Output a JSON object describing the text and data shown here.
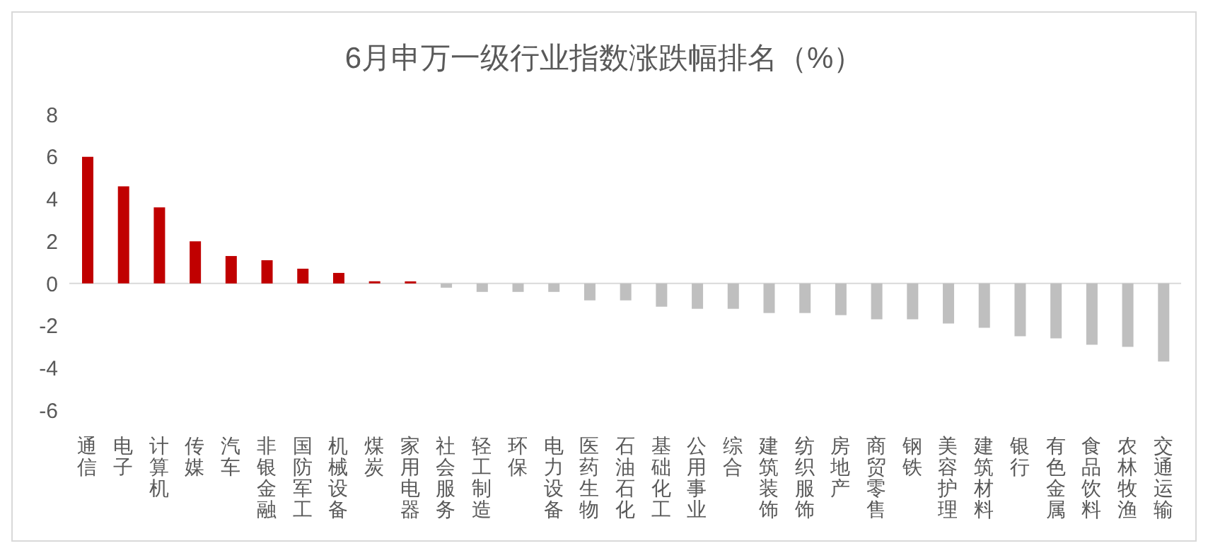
{
  "chart_data": {
    "type": "bar",
    "title": "6月申万一级行业指数涨跌幅排名（%）",
    "categories": [
      "通信",
      "电子",
      "计算机",
      "传媒",
      "汽车",
      "非银金融",
      "国防军工",
      "机械设备",
      "煤炭",
      "家用电器",
      "社会服务",
      "轻工制造",
      "环保",
      "电力设备",
      "医药生物",
      "石油石化",
      "基础化工",
      "公用事业",
      "综合",
      "建筑装饰",
      "纺织服饰",
      "房地产",
      "商贸零售",
      "钢铁",
      "美容护理",
      "建筑材料",
      "银行",
      "有色金属",
      "食品饮料",
      "农林牧渔",
      "交通运输"
    ],
    "values": [
      6.0,
      4.6,
      3.6,
      2.0,
      1.3,
      1.1,
      0.7,
      0.5,
      0.1,
      0.1,
      -0.2,
      -0.4,
      -0.4,
      -0.4,
      -0.8,
      -0.8,
      -1.1,
      -1.2,
      -1.2,
      -1.4,
      -1.4,
      -1.5,
      -1.7,
      -1.7,
      -1.9,
      -2.1,
      -2.5,
      -2.6,
      -2.9,
      -3.0,
      -3.7
    ],
    "colors": [
      "#c00000",
      "#c00000",
      "#c00000",
      "#c00000",
      "#c00000",
      "#c00000",
      "#c00000",
      "#c00000",
      "#c00000",
      "#c00000",
      "#bfbfbf",
      "#bfbfbf",
      "#bfbfbf",
      "#bfbfbf",
      "#bfbfbf",
      "#bfbfbf",
      "#bfbfbf",
      "#bfbfbf",
      "#bfbfbf",
      "#bfbfbf",
      "#bfbfbf",
      "#bfbfbf",
      "#bfbfbf",
      "#bfbfbf",
      "#bfbfbf",
      "#bfbfbf",
      "#bfbfbf",
      "#bfbfbf",
      "#bfbfbf",
      "#bfbfbf",
      "#bfbfbf"
    ],
    "ylim": [
      -6,
      8
    ],
    "yticks": [
      -6,
      -4,
      -2,
      0,
      2,
      4,
      6,
      8
    ]
  }
}
